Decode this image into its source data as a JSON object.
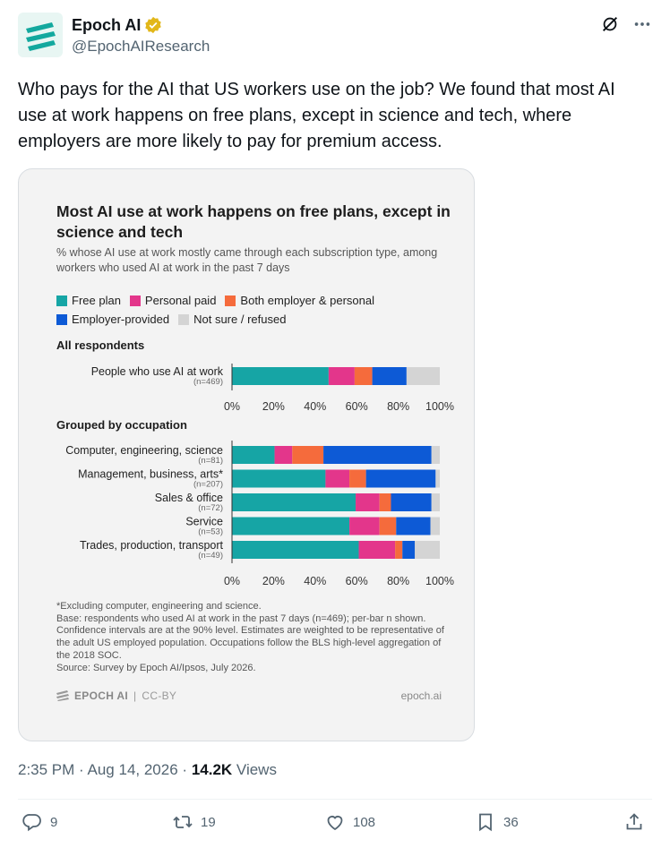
{
  "header": {
    "display_name": "Epoch AI",
    "handle": "@EpochAIResearch"
  },
  "tweet": {
    "text": "Who pays for the AI that US workers use on the job? We found that most AI use at work happens on free plans, except in science and tech, where employers are more likely to pay for premium access."
  },
  "chart_data": {
    "type": "bar",
    "orientation": "horizontal",
    "stacked": true,
    "title": "Most AI use at work happens on free plans, except in science and tech",
    "subtitle": "% whose AI use at work mostly came through each subscription type, among workers who used AI at work in the past 7 days",
    "legend": [
      {
        "name": "Free plan",
        "color": "#16a5a5"
      },
      {
        "name": "Personal paid",
        "color": "#e3368b"
      },
      {
        "name": "Both employer & personal",
        "color": "#f56b3c"
      },
      {
        "name": "Employer-provided",
        "color": "#0d5ad6"
      },
      {
        "name": "Not sure / refused",
        "color": "#d4d4d4"
      }
    ],
    "ticks": [
      "0%",
      "20%",
      "40%",
      "60%",
      "80%",
      "100%"
    ],
    "xlim": [
      0,
      100
    ],
    "grid": false,
    "groups": [
      {
        "label": "All respondents",
        "bars": [
          {
            "label": "People who use AI at work",
            "n": "(n=469)",
            "values": [
              46.5,
              12.5,
              8.5,
              16.5,
              16
            ]
          }
        ]
      },
      {
        "label": "Grouped by occupation",
        "bars": [
          {
            "label": "Computer, engineering, science",
            "n": "(n=81)",
            "values": [
              20.5,
              8.5,
              15,
              52,
              4
            ]
          },
          {
            "label": "Management, business, arts*",
            "n": "(n=207)",
            "values": [
              45,
              11.5,
              8,
              33.5,
              2
            ]
          },
          {
            "label": "Sales & office",
            "n": "(n=72)",
            "values": [
              59.5,
              11.5,
              5.5,
              19.5,
              4
            ]
          },
          {
            "label": "Service",
            "n": "(n=53)",
            "values": [
              56.5,
              14.5,
              8,
              16.5,
              4.5
            ]
          },
          {
            "label": "Trades, production, transport",
            "n": "(n=49)",
            "values": [
              61,
              17.5,
              3.5,
              6,
              12
            ]
          }
        ]
      }
    ]
  },
  "footnote": [
    "*Excluding computer, engineering and science.",
    "Base: respondents who used AI at work in the past 7 days (n=469); per-bar n shown. Confidence intervals are at the 90% level. Estimates are weighted to be representative of the adult US employed population. Occupations follow the BLS high-level aggregation of the 2018 SOC.",
    "Source: Survey by Epoch AI/Ipsos, July 2026."
  ],
  "card_footer": {
    "brand": "EPOCH AI",
    "separator": "|",
    "license": "CC-BY",
    "site": "epoch.ai"
  },
  "meta": {
    "time": "2:35 PM",
    "dot": "·",
    "date": "Aug 14, 2026",
    "views_count": "14.2K",
    "views_label": "Views"
  },
  "actions": {
    "replies": "9",
    "reposts": "19",
    "likes": "108",
    "bookmarks": "36"
  },
  "icons": {
    "avatar": "epoch-ai-logo",
    "verified": "gold-verified-badge",
    "grok": "grok-icon",
    "more": "more-icon",
    "reply": "reply-icon",
    "repost": "repost-icon",
    "like": "heart-icon",
    "bookmark": "bookmark-icon",
    "share": "share-icon"
  }
}
